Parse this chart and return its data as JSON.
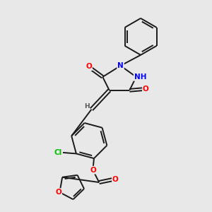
{
  "bg_color": "#e8e8e8",
  "bond_color": "#1a1a1a",
  "atom_colors": {
    "O": "#ff0000",
    "N": "#0000ff",
    "Cl": "#00bb00",
    "H": "#555555",
    "C": "#1a1a1a"
  },
  "lw": 1.4,
  "fs": 7.5
}
